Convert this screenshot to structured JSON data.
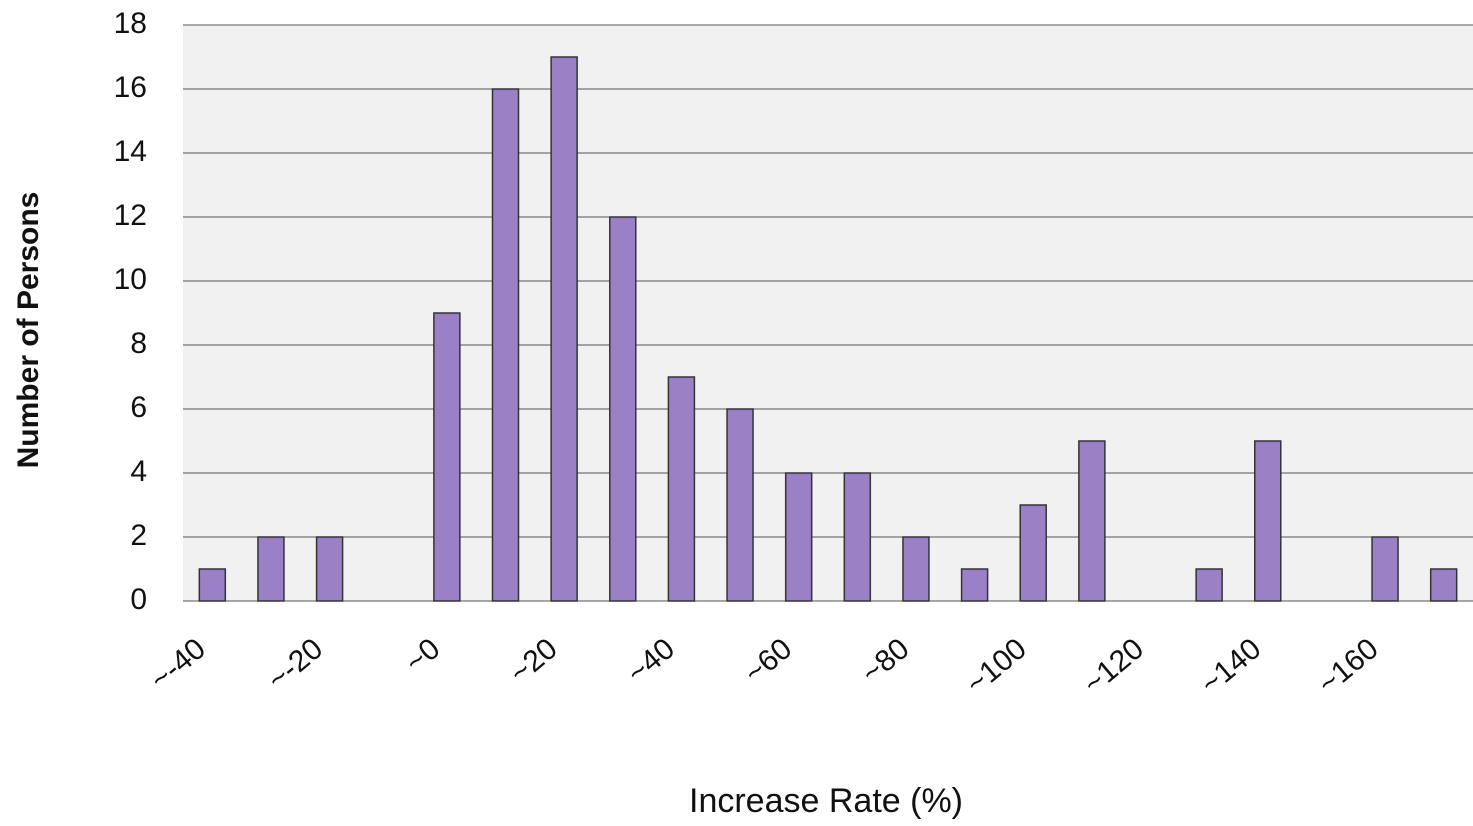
{
  "chart_data": {
    "type": "bar",
    "x_label": "Increase Rate (%)",
    "y_label": "Number of Persons",
    "categories": [
      "~-40",
      null,
      "~-20",
      null,
      "~0",
      null,
      "~20",
      null,
      "~40",
      null,
      "~60",
      null,
      "~80",
      null,
      "~100",
      null,
      "~120",
      null,
      "~140",
      null,
      "~160",
      null
    ],
    "values": [
      1,
      2,
      2,
      0,
      9,
      16,
      17,
      12,
      7,
      6,
      4,
      4,
      2,
      1,
      3,
      5,
      0,
      1,
      5,
      0,
      2,
      1
    ],
    "color": "#9a80c6",
    "ylim": [
      0,
      18
    ],
    "yticks": [
      0,
      2,
      4,
      6,
      8,
      10,
      12,
      14,
      16,
      18
    ],
    "grid": true
  }
}
